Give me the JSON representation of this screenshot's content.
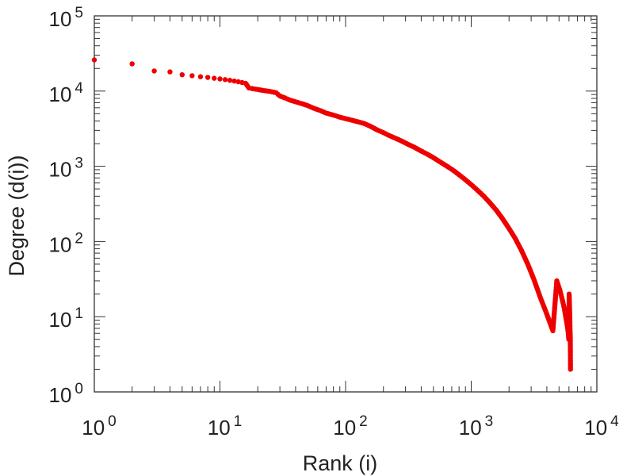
{
  "chart_data": {
    "type": "scatter",
    "title": "",
    "xlabel": "Rank (i)",
    "ylabel": "Degree (d(i))",
    "xscale": "log",
    "yscale": "log",
    "xlim": [
      1,
      10000
    ],
    "ylim": [
      1,
      100000
    ],
    "x_ticks": [
      {
        "value": 1,
        "base": "10",
        "exp": "0"
      },
      {
        "value": 10,
        "base": "10",
        "exp": "1"
      },
      {
        "value": 100,
        "base": "10",
        "exp": "2"
      },
      {
        "value": 1000,
        "base": "10",
        "exp": "3"
      },
      {
        "value": 10000,
        "base": "10",
        "exp": "4"
      }
    ],
    "y_ticks": [
      {
        "value": 1,
        "base": "10",
        "exp": "0"
      },
      {
        "value": 10,
        "base": "10",
        "exp": "1"
      },
      {
        "value": 100,
        "base": "10",
        "exp": "2"
      },
      {
        "value": 1000,
        "base": "10",
        "exp": "3"
      },
      {
        "value": 10000,
        "base": "10",
        "exp": "4"
      },
      {
        "value": 100000,
        "base": "10",
        "exp": "5"
      }
    ],
    "grid": false,
    "legend": "none",
    "marker_color": "#ee0000",
    "axis_color": "#333333",
    "series": [
      {
        "x": [
          1,
          2,
          3,
          4,
          5,
          6,
          7,
          8,
          9,
          10,
          11,
          12,
          13,
          14,
          15,
          16,
          17,
          18,
          20,
          22,
          25,
          28,
          30,
          33,
          36,
          40,
          45,
          50,
          56,
          63,
          70,
          80,
          90,
          100,
          112,
          126,
          141,
          158,
          178,
          200,
          224,
          251,
          282,
          316,
          355,
          398,
          447,
          501,
          562,
          631,
          708,
          794,
          891,
          1000,
          1122,
          1259,
          1413,
          1585,
          1778,
          1995,
          2239,
          2512,
          2818,
          3162,
          3548,
          3981,
          4467,
          4800,
          5100,
          5300,
          5500,
          5650,
          5750,
          5850,
          5920,
          5980,
          6020,
          6060,
          6090,
          6110,
          6120,
          6130,
          6140,
          6150,
          6155,
          6160,
          6165,
          6170
        ],
        "y": [
          26000,
          23000,
          18500,
          18000,
          16500,
          16000,
          15500,
          15200,
          14800,
          14500,
          14200,
          13900,
          13600,
          13300,
          13000,
          12700,
          11000,
          10800,
          10500,
          10200,
          9900,
          9500,
          8600,
          8100,
          7600,
          7200,
          6800,
          6400,
          5900,
          5500,
          5100,
          4800,
          4500,
          4300,
          4100,
          3900,
          3700,
          3400,
          3050,
          2800,
          2550,
          2350,
          2150,
          1950,
          1780,
          1600,
          1450,
          1300,
          1150,
          1020,
          900,
          780,
          670,
          570,
          480,
          400,
          325,
          260,
          200,
          150,
          110,
          76,
          50,
          31,
          18,
          11,
          6.5,
          30,
          22,
          17,
          13,
          10,
          8.5,
          7,
          6,
          5,
          20,
          14,
          10,
          8,
          7,
          6.5,
          6,
          5,
          4,
          3,
          2.6,
          2
        ]
      }
    ]
  }
}
